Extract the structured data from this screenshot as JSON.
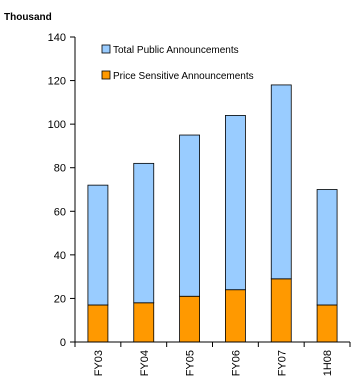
{
  "chart_data": {
    "type": "bar",
    "stacked": true,
    "unit_label": "Thousand",
    "categories": [
      "FY03",
      "FY04",
      "FY05",
      "FY06",
      "FY07",
      "1H08"
    ],
    "series": [
      {
        "name": "Price Sensitive Announcements",
        "color": "#ff9900",
        "values": [
          17,
          18,
          21,
          24,
          29,
          17
        ]
      },
      {
        "name": "Total Public Announcements",
        "color": "#99ccff",
        "values": [
          55,
          64,
          74,
          80,
          89,
          53
        ]
      }
    ],
    "totals": [
      72,
      82,
      95,
      104,
      118,
      70
    ],
    "ylim": [
      0,
      140
    ],
    "yticks": [
      0,
      20,
      40,
      60,
      80,
      100,
      120,
      140
    ],
    "grid": false,
    "legend_position": "top-left inside",
    "legend_order": [
      "Total Public Announcements",
      "Price Sensitive Announcements"
    ]
  }
}
